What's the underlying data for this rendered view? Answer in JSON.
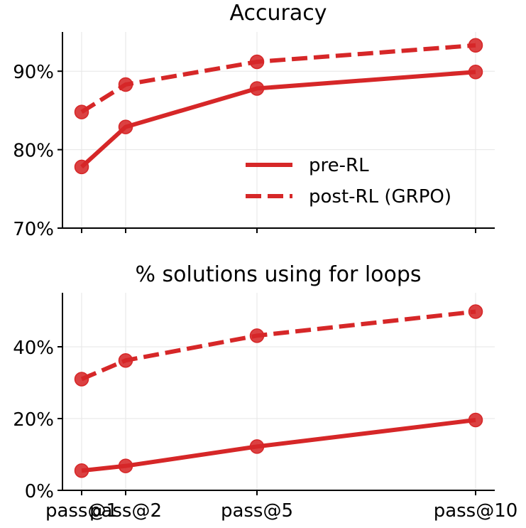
{
  "figure": {
    "x_tick_labels": [
      "pass@1",
      "pass@2",
      "pass@5",
      "pass@10"
    ]
  },
  "legend": {
    "items": [
      {
        "label": "pre-RL",
        "style": "solid"
      },
      {
        "label": "post-RL (GRPO)",
        "style": "dashed"
      }
    ],
    "placement": "lower-right of top panel"
  },
  "colors": {
    "series": "#d62728",
    "grid": "#e6e6e6",
    "axis": "#000000"
  },
  "chart_data": [
    {
      "type": "line",
      "title": "Accuracy",
      "xlabel": "",
      "ylabel": "",
      "x": [
        1,
        2,
        5,
        10
      ],
      "categories": [
        "pass@1",
        "pass@2",
        "pass@5",
        "pass@10"
      ],
      "ylim": [
        70,
        95
      ],
      "yticks": [
        70,
        80,
        90
      ],
      "ytick_labels": [
        "70%",
        "80%",
        "90%"
      ],
      "grid": true,
      "series": [
        {
          "name": "pre-RL",
          "style": "solid",
          "values": [
            77.8,
            82.9,
            87.8,
            89.9
          ]
        },
        {
          "name": "post-RL (GRPO)",
          "style": "dashed",
          "values": [
            84.8,
            88.3,
            91.2,
            93.3
          ]
        }
      ]
    },
    {
      "type": "line",
      "title": "% solutions using for loops",
      "xlabel": "",
      "ylabel": "",
      "x": [
        1,
        2,
        5,
        10
      ],
      "categories": [
        "pass@1",
        "pass@2",
        "pass@5",
        "pass@10"
      ],
      "ylim": [
        0,
        55
      ],
      "yticks": [
        0,
        20,
        40
      ],
      "ytick_labels": [
        "0%",
        "20%",
        "40%"
      ],
      "grid": true,
      "series": [
        {
          "name": "pre-RL",
          "style": "solid",
          "values": [
            5.5,
            6.8,
            12.2,
            19.6
          ]
        },
        {
          "name": "post-RL (GRPO)",
          "style": "dashed",
          "values": [
            31.0,
            36.2,
            43.1,
            49.8
          ]
        }
      ]
    }
  ]
}
